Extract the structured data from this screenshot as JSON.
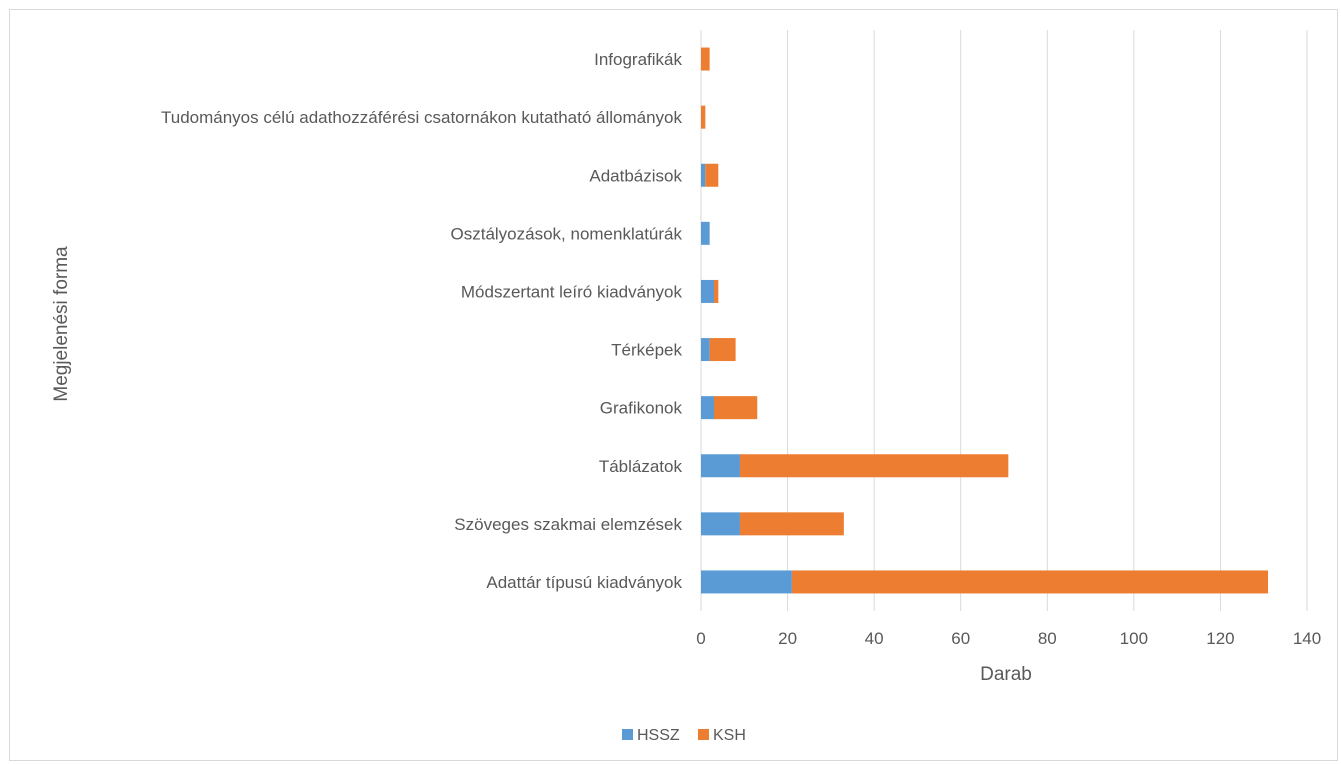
{
  "chart_data": {
    "type": "bar",
    "orientation": "horizontal",
    "stacked": true,
    "categories": [
      "Adattár típusú kiadványok",
      "Szöveges szakmai elemzések",
      "Táblázatok",
      "Grafikonok",
      "Térképek",
      "Módszertant leíró kiadványok",
      "Osztályozások, nomenklatúrák",
      "Adatbázisok",
      "Tudományos célú adathozzáférési csatornákon kutatható állományok",
      "Infografikák"
    ],
    "series": [
      {
        "name": "HSSZ",
        "color": "#5b9bd5",
        "values": [
          21,
          9,
          9,
          3,
          2,
          3,
          2,
          1,
          0,
          0
        ]
      },
      {
        "name": "KSH",
        "color": "#ed7d31",
        "values": [
          110,
          24,
          62,
          10,
          6,
          1,
          0,
          3,
          1,
          2
        ]
      }
    ],
    "xlabel": "Darab",
    "ylabel": "Megjelenési forma",
    "xlim": [
      0,
      140
    ],
    "xticks": [
      0,
      20,
      40,
      60,
      80,
      100,
      120,
      140
    ],
    "grid": true,
    "legend": "bottom"
  }
}
